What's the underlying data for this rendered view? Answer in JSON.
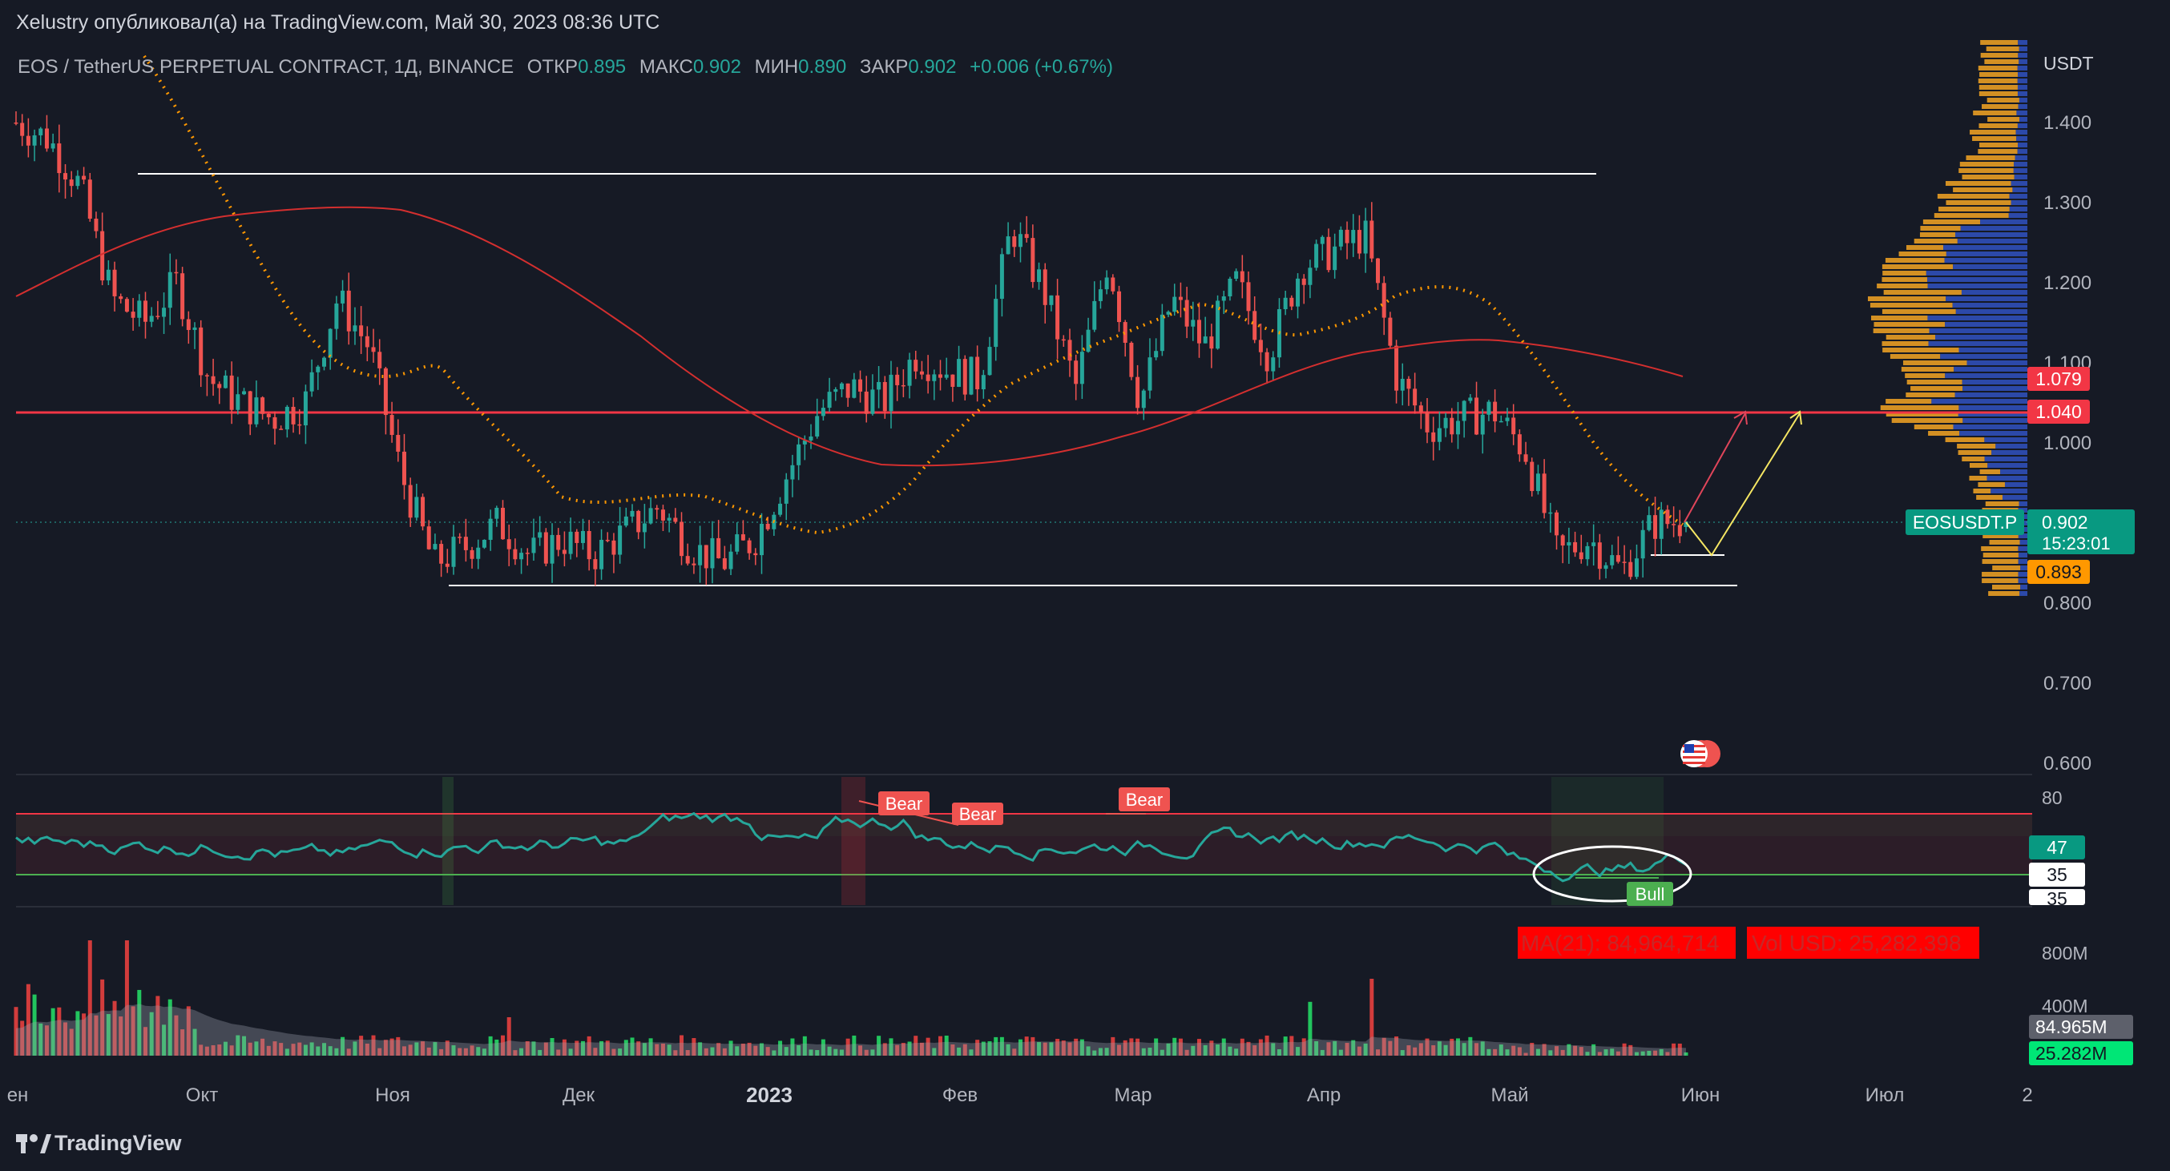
{
  "publisher": "Xelustry опубликовал(а) на TradingView.com, Май 30, 2023 08:36 UTC",
  "brand": "TradingView",
  "colors": {
    "background": "#161a25",
    "up": "#26a69a",
    "down": "#ef5350",
    "resistance": "#f23645",
    "ma_red": "#d32f2f",
    "ema_orange": "#ff9800",
    "rsi_line": "#26a69a",
    "volume_up": "#22c55e",
    "volume_down": "#d23c3c",
    "projection_red": "#e0455a",
    "projection_yellow": "#f5e663"
  },
  "legend": {
    "symbol": "EOS / TetherUS PERPETUAL CONTRACT, 1Д, BINANCE",
    "open_label": "ОТКР",
    "open": "0.895",
    "high_label": "МАКС",
    "high": "0.902",
    "low_label": "МИН",
    "low": "0.890",
    "close_label": "ЗАКР",
    "close": "0.902",
    "change": "+0.006 (+0.67%)"
  },
  "price_axis": {
    "currency": "USDT",
    "ticks": [
      "1.400",
      "1.300",
      "1.200",
      "1.100",
      "1.000",
      "0.800",
      "0.700",
      "0.600"
    ]
  },
  "price_labels": {
    "ma_value": "1.079",
    "resistance_value": "1.040",
    "symbol_tag": "EOSUSDT.P",
    "last_price": "0.902",
    "countdown": "15:23:01",
    "ema_value": "0.893"
  },
  "rsi_pane": {
    "ticks": [
      "80"
    ],
    "value_label": "47",
    "label_35a": "35",
    "label_35b": "35",
    "signals": [
      "Bear",
      "Bear",
      "Bear",
      "Bull"
    ]
  },
  "volume_pane": {
    "ticks": [
      "800M",
      "400M"
    ],
    "ma_label": "MA(21): 84,964,714",
    "vol_label": "Vol USD: 25,282,398",
    "ma_value": "84.965M",
    "vol_value": "25.282M"
  },
  "time_axis": [
    "ен",
    "Окт",
    "Ноя",
    "Дек",
    "2023",
    "Фев",
    "Мар",
    "Апр",
    "Май",
    "Июн",
    "Июл",
    "2"
  ],
  "chart_data": {
    "type": "candlestick",
    "symbol": "EOSUSDT.P",
    "interval": "1D",
    "x_range": [
      "2022-09-01",
      "2023-05-30"
    ],
    "y_range": [
      0.58,
      1.48
    ],
    "y_scale": "linear",
    "grid": false,
    "series": [
      {
        "name": "EOSUSDT.P",
        "type": "candlestick",
        "close": [
          1.4,
          1.38,
          1.32,
          1.18,
          1.15,
          1.2,
          1.08,
          1.05,
          1.03,
          1.05,
          1.18,
          1.12,
          0.96,
          0.85,
          0.87,
          0.9,
          0.86,
          0.88,
          0.86,
          0.89,
          0.92,
          0.87,
          0.85,
          0.88,
          0.96,
          1.04,
          1.07,
          1.05,
          1.11,
          1.09,
          1.08,
          1.27,
          1.19,
          1.07,
          1.23,
          1.05,
          1.18,
          1.12,
          1.2,
          1.11,
          1.22,
          1.24,
          1.26,
          1.08,
          1.02,
          1.03,
          1.04,
          0.99,
          0.86,
          0.88,
          0.84,
          0.9,
          0.902
        ]
      },
      {
        "name": "MA",
        "type": "line",
        "last": 1.079
      },
      {
        "name": "EMA",
        "type": "line",
        "last": 0.893
      }
    ],
    "levels": [
      {
        "kind": "resistance",
        "value": 1.04
      },
      {
        "kind": "range_top",
        "value": 1.335
      },
      {
        "kind": "range_bottom",
        "value": 0.822
      },
      {
        "kind": "support",
        "value": 0.86
      }
    ],
    "projections": [
      {
        "points": [
          [
            "2023-05-30",
            0.902
          ],
          [
            "2023-06-08",
            1.04
          ]
        ]
      },
      {
        "points": [
          [
            "2023-05-30",
            0.902
          ],
          [
            "2023-06-03",
            0.86
          ],
          [
            "2023-06-15",
            1.04
          ]
        ]
      }
    ],
    "rsi": {
      "range": [
        20,
        85
      ],
      "upper": 70,
      "lower": 35,
      "last": 47
    },
    "volume": {
      "ma21": 84964714,
      "last": 25282398,
      "max_tick": "800M"
    }
  }
}
